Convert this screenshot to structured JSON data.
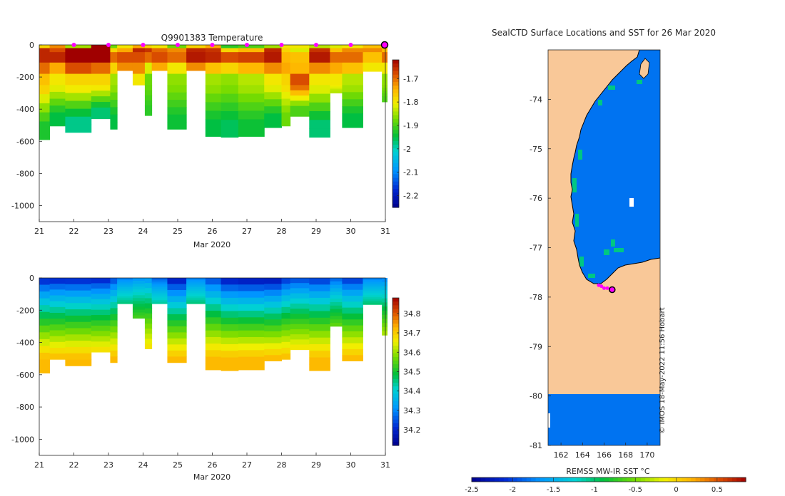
{
  "chart_data": [
    {
      "id": "temp",
      "type": "heatmap",
      "title": "Q9901383  Temperature",
      "xlabel": "Mar 2020",
      "x_ticks": [
        "21",
        "22",
        "23",
        "24",
        "25",
        "26",
        "27",
        "28",
        "29",
        "30",
        "31"
      ],
      "y_ticks": [
        "0",
        "-200",
        "-400",
        "-600",
        "-800",
        "-1000"
      ],
      "xlim": [
        21,
        31
      ],
      "ylim": [
        -1100,
        0
      ],
      "colorbar": {
        "ticks": [
          "-1.7",
          "-1.8",
          "-1.9",
          "-2",
          "-2.1",
          "-2.2"
        ],
        "range": [
          -2.25,
          -1.62
        ]
      },
      "profile_days": [
        22.0,
        23.0,
        24.0,
        25.0,
        26.0,
        27.0,
        28.0,
        29.0,
        30.0
      ],
      "last_profile_day": 31.0,
      "profiles": [
        {
          "x0": 21.0,
          "x1": 21.3,
          "depth": 590,
          "top": [
            -1.78,
            -1.65,
            -1.65,
            -1.7,
            -1.76
          ],
          "deep": -1.93
        },
        {
          "x0": 21.3,
          "x1": 21.75,
          "depth": 505,
          "top": [
            -1.72,
            -1.68,
            -1.65,
            -1.74,
            -1.8
          ],
          "deep": -1.95
        },
        {
          "x0": 21.75,
          "x1": 22.5,
          "depth": 545,
          "top": [
            -1.85,
            -1.62,
            -1.62,
            -1.68,
            -1.78
          ],
          "deep": -1.98
        },
        {
          "x0": 22.5,
          "x1": 23.05,
          "depth": 460,
          "top": [
            -1.62,
            -1.62,
            -1.62,
            -1.7,
            -1.78
          ],
          "deep": -1.97
        },
        {
          "x0": 23.05,
          "x1": 23.25,
          "depth": 525,
          "top": [
            -1.88,
            -1.78,
            -1.7,
            -1.78,
            -1.85
          ],
          "deep": -1.95
        },
        {
          "x0": 23.25,
          "x1": 23.7,
          "depth": 160,
          "top": [
            -1.8,
            -1.74,
            -1.68,
            -1.72,
            -1.78
          ],
          "deep": -1.8
        },
        {
          "x0": 23.7,
          "x1": 24.05,
          "depth": 250,
          "top": [
            -1.74,
            -1.65,
            -1.68,
            -1.72,
            -1.8
          ],
          "deep": -1.78
        },
        {
          "x0": 24.05,
          "x1": 24.25,
          "depth": 440,
          "top": [
            -1.78,
            -1.66,
            -1.7,
            -1.82,
            -1.88
          ],
          "deep": -1.92
        },
        {
          "x0": 24.25,
          "x1": 24.7,
          "depth": 160,
          "top": [
            -1.8,
            -1.7,
            -1.68,
            -1.74,
            -1.8
          ],
          "deep": -1.82
        },
        {
          "x0": 24.7,
          "x1": 25.25,
          "depth": 525,
          "top": [
            -1.88,
            -1.72,
            -1.7,
            -1.8,
            -1.86
          ],
          "deep": -1.94
        },
        {
          "x0": 25.25,
          "x1": 25.8,
          "depth": 160,
          "top": [
            -1.78,
            -1.65,
            -1.64,
            -1.72,
            -1.8
          ],
          "deep": -1.8
        },
        {
          "x0": 25.8,
          "x1": 26.25,
          "depth": 570,
          "top": [
            -1.74,
            -1.66,
            -1.65,
            -1.76,
            -1.85
          ],
          "deep": -1.95
        },
        {
          "x0": 26.25,
          "x1": 26.75,
          "depth": 575,
          "top": [
            -1.92,
            -1.78,
            -1.68,
            -1.78,
            -1.86
          ],
          "deep": -1.96
        },
        {
          "x0": 26.75,
          "x1": 27.5,
          "depth": 570,
          "top": [
            -1.9,
            -1.75,
            -1.67,
            -1.75,
            -1.84
          ],
          "deep": -1.94
        },
        {
          "x0": 27.5,
          "x1": 28.0,
          "depth": 515,
          "top": [
            -1.85,
            -1.65,
            -1.64,
            -1.72,
            -1.8
          ],
          "deep": -1.95
        },
        {
          "x0": 28.0,
          "x1": 28.25,
          "depth": 505,
          "top": [
            -1.8,
            -1.78,
            -1.75,
            -1.74,
            -1.78
          ],
          "deep": -1.88
        },
        {
          "x0": 28.25,
          "x1": 28.8,
          "depth": 445,
          "top": [
            -1.8,
            -1.82,
            -1.76,
            -1.75,
            -1.68
          ],
          "deep": -1.9
        },
        {
          "x0": 28.8,
          "x1": 29.4,
          "depth": 575,
          "top": [
            -1.84,
            -1.66,
            -1.64,
            -1.72,
            -1.8
          ],
          "deep": -1.97
        },
        {
          "x0": 29.4,
          "x1": 29.75,
          "depth": 300,
          "top": [
            -1.82,
            -1.76,
            -1.7,
            -1.74,
            -1.8
          ],
          "deep": -1.84
        },
        {
          "x0": 29.75,
          "x1": 30.35,
          "depth": 515,
          "top": [
            -1.8,
            -1.72,
            -1.7,
            -1.76,
            -1.84
          ],
          "deep": -1.95
        },
        {
          "x0": 30.35,
          "x1": 30.9,
          "depth": 165,
          "top": [
            -1.76,
            -1.72,
            -1.76,
            -1.8,
            -1.82
          ],
          "deep": -1.82
        },
        {
          "x0": 30.9,
          "x1": 31.05,
          "depth": 355,
          "top": [
            -1.88,
            -1.75,
            -1.7,
            -1.8,
            -1.86
          ],
          "deep": -1.9
        }
      ]
    },
    {
      "id": "sal",
      "type": "heatmap",
      "title": "",
      "xlabel": "Mar 2020",
      "x_ticks": [
        "21",
        "22",
        "23",
        "24",
        "25",
        "26",
        "27",
        "28",
        "29",
        "30",
        "31"
      ],
      "y_ticks": [
        "0",
        "-200",
        "-400",
        "-600",
        "-800",
        "-1000"
      ],
      "xlim": [
        21,
        31
      ],
      "ylim": [
        -1100,
        0
      ],
      "colorbar": {
        "ticks": [
          "34.8",
          "34.7",
          "34.6",
          "34.5",
          "34.4",
          "34.3",
          "34.2"
        ],
        "range": [
          34.12,
          34.88
        ]
      },
      "profiles": [
        {
          "x0": 21.0,
          "x1": 21.3,
          "depth": 590,
          "top": 34.18
        },
        {
          "x0": 21.3,
          "x1": 21.75,
          "depth": 505,
          "top": 34.18
        },
        {
          "x0": 21.75,
          "x1": 22.5,
          "depth": 545,
          "top": 34.18
        },
        {
          "x0": 22.5,
          "x1": 23.05,
          "depth": 460,
          "top": 34.18
        },
        {
          "x0": 23.05,
          "x1": 23.25,
          "depth": 525,
          "top": 34.22
        },
        {
          "x0": 23.25,
          "x1": 23.7,
          "depth": 160,
          "top": 34.28
        },
        {
          "x0": 23.7,
          "x1": 24.05,
          "depth": 250,
          "top": 34.3
        },
        {
          "x0": 24.05,
          "x1": 24.25,
          "depth": 440,
          "top": 34.3
        },
        {
          "x0": 24.25,
          "x1": 24.7,
          "depth": 160,
          "top": 34.25
        },
        {
          "x0": 24.7,
          "x1": 25.25,
          "depth": 525,
          "top": 34.16
        },
        {
          "x0": 25.25,
          "x1": 25.8,
          "depth": 160,
          "top": 34.28
        },
        {
          "x0": 25.8,
          "x1": 26.25,
          "depth": 570,
          "top": 34.22
        },
        {
          "x0": 26.25,
          "x1": 26.75,
          "depth": 575,
          "top": 34.16
        },
        {
          "x0": 26.75,
          "x1": 27.5,
          "depth": 570,
          "top": 34.15
        },
        {
          "x0": 27.5,
          "x1": 28.0,
          "depth": 515,
          "top": 34.15
        },
        {
          "x0": 28.0,
          "x1": 28.25,
          "depth": 505,
          "top": 34.2
        },
        {
          "x0": 28.25,
          "x1": 28.8,
          "depth": 445,
          "top": 34.22
        },
        {
          "x0": 28.8,
          "x1": 29.4,
          "depth": 575,
          "top": 34.2
        },
        {
          "x0": 29.4,
          "x1": 29.75,
          "depth": 300,
          "top": 34.25
        },
        {
          "x0": 29.75,
          "x1": 30.35,
          "depth": 515,
          "top": 34.2
        },
        {
          "x0": 30.35,
          "x1": 30.9,
          "depth": 165,
          "top": 34.28
        },
        {
          "x0": 30.9,
          "x1": 31.05,
          "depth": 355,
          "top": 34.28
        }
      ]
    },
    {
      "id": "map",
      "type": "heatmap",
      "title": "SealCTD Surface Locations and SST for 26 Mar 2020",
      "xlabel": "",
      "x_ticks": [
        "162",
        "164",
        "166",
        "168",
        "170"
      ],
      "y_ticks": [
        "-74",
        "-75",
        "-76",
        "-77",
        "-78",
        "-79",
        "-80",
        "-81"
      ],
      "xlim": [
        160.8,
        171.2
      ],
      "ylim": [
        -81.0,
        -73.0
      ],
      "colorbar": {
        "label": "REMSS MW-IR SST °C",
        "ticks": [
          "-2.5",
          "-2",
          "-1.5",
          "-1",
          "-0.5",
          "0",
          "0.5"
        ],
        "range": [
          -2.5,
          0.85
        ]
      },
      "land_color": "#f9c898",
      "sea_value": -1.8,
      "track": [
        [
          166.6,
          -77.85
        ],
        [
          166.3,
          -77.82
        ],
        [
          166.0,
          -77.82
        ],
        [
          165.75,
          -77.78
        ],
        [
          165.5,
          -77.76
        ]
      ],
      "last_position": [
        166.75,
        -77.85
      ],
      "credit": "© IMOS 18-May-2022 11:56 Hobart"
    }
  ]
}
